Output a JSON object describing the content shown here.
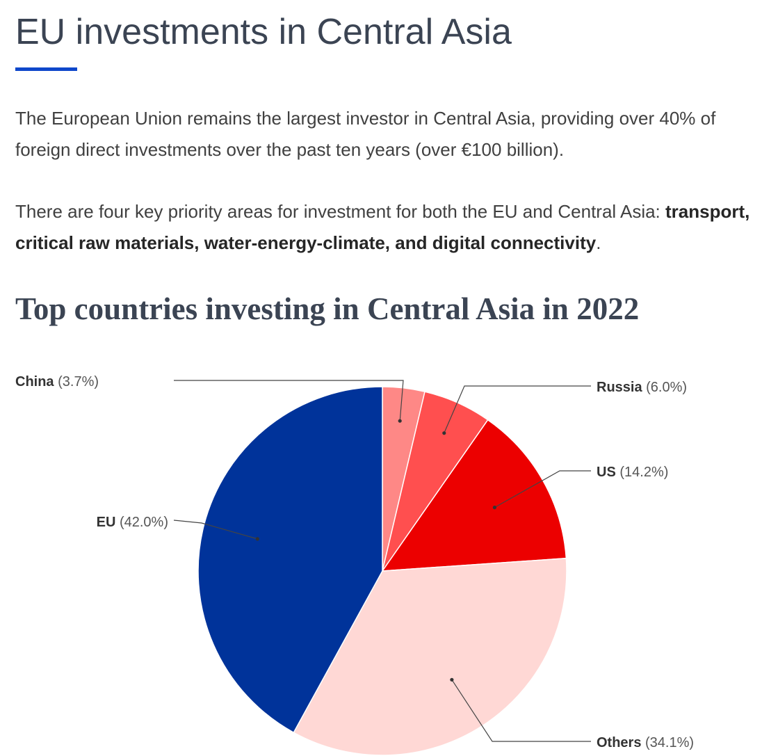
{
  "header": {
    "title": "EU investments in Central Asia"
  },
  "intro": {
    "paragraph_1": "The European Union remains the largest investor in Central Asia, providing over 40% of foreign direct investments over the past ten years (over €100 billion).",
    "paragraph_2_text": "There are four key priority areas for investment for both the EU and Central Asia: ",
    "paragraph_2_bold": "transport, critical raw materials, water-energy-climate, and digital connectivity",
    "paragraph_2_end": "."
  },
  "chart_data": {
    "type": "pie",
    "title": "Top countries investing in Central Asia in 2022",
    "slices": [
      {
        "label": "China",
        "value": 3.7,
        "value_label": "(3.7%)",
        "color": "#fe8886"
      },
      {
        "label": "Russia",
        "value": 6.0,
        "value_label": "(6.0%)",
        "color": "#ff4f4f"
      },
      {
        "label": "US",
        "value": 14.2,
        "value_label": "(14.2%)",
        "color": "#ec0000"
      },
      {
        "label": "Others",
        "value": 34.1,
        "value_label": "(34.1%)",
        "color": "#ffd8d5"
      },
      {
        "label": "EU",
        "value": 42.0,
        "value_label": "(42.0%)",
        "color": "#00339a"
      }
    ],
    "start_angle_deg": 0,
    "direction": "clockwise",
    "legend": "none",
    "label_style": "name bold, percentage regular, leader lines"
  }
}
